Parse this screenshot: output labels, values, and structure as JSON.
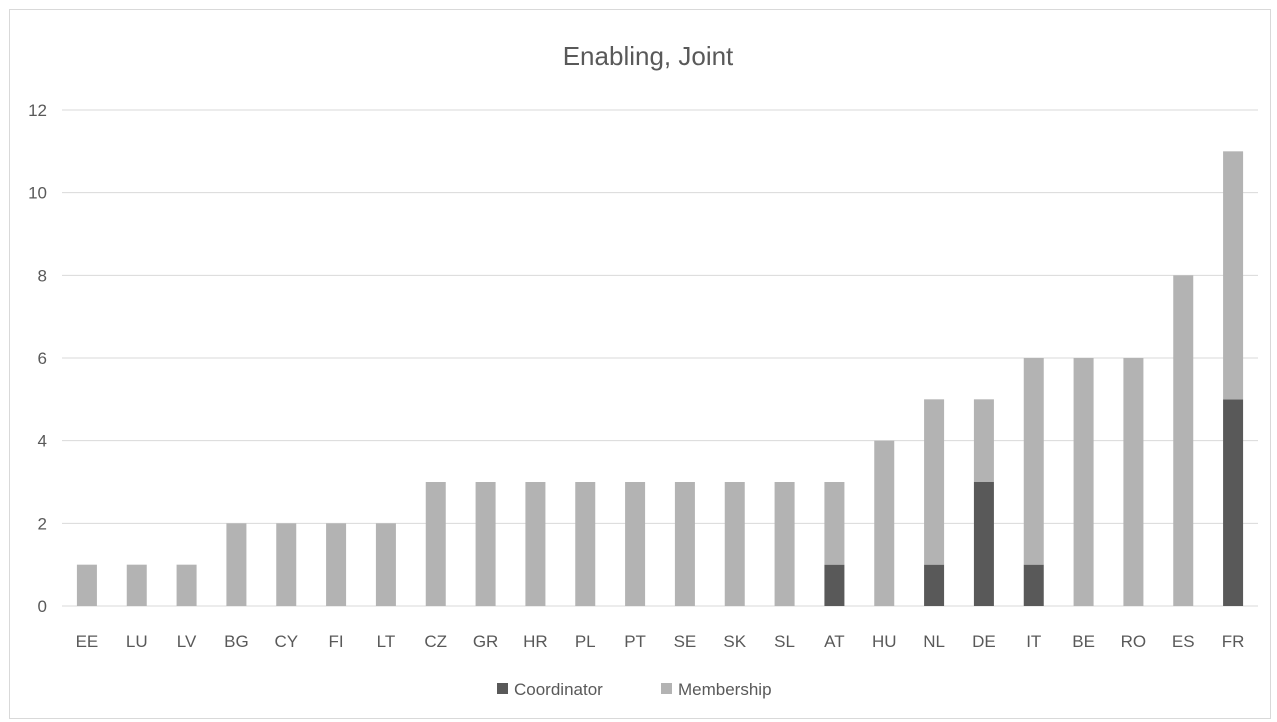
{
  "chart_data": {
    "type": "bar",
    "stacked": true,
    "title": "Enabling, Joint",
    "xlabel": "",
    "ylabel": "",
    "ylim": [
      0,
      12
    ],
    "yticks": [
      0,
      2,
      4,
      6,
      8,
      10,
      12
    ],
    "grid": true,
    "legend_position": "bottom",
    "categories": [
      "EE",
      "LU",
      "LV",
      "BG",
      "CY",
      "FI",
      "LT",
      "CZ",
      "GR",
      "HR",
      "PL",
      "PT",
      "SE",
      "SK",
      "SL",
      "AT",
      "HU",
      "NL",
      "DE",
      "IT",
      "BE",
      "RO",
      "ES",
      "FR"
    ],
    "series": [
      {
        "name": "Coordinator",
        "color": "#595959",
        "values": [
          0,
          0,
          0,
          0,
          0,
          0,
          0,
          0,
          0,
          0,
          0,
          0,
          0,
          0,
          0,
          1,
          0,
          1,
          3,
          1,
          0,
          0,
          0,
          5
        ]
      },
      {
        "name": "Membership",
        "color": "#b3b3b3",
        "values": [
          1,
          1,
          1,
          2,
          2,
          2,
          2,
          3,
          3,
          3,
          3,
          3,
          3,
          3,
          3,
          2,
          4,
          4,
          2,
          5,
          6,
          6,
          8,
          6
        ]
      }
    ]
  }
}
